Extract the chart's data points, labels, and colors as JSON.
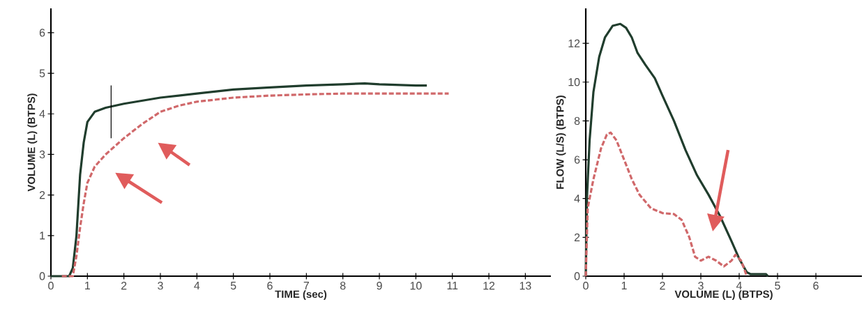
{
  "chart_data": [
    {
      "type": "line",
      "xlabel": "TIME (sec)",
      "ylabel": "VOLUME (L) (BTPS)",
      "xlim": [
        0,
        13.7
      ],
      "ylim": [
        0,
        6.6
      ],
      "xticks": [
        0,
        1,
        2,
        3,
        4,
        5,
        6,
        7,
        8,
        9,
        10,
        11,
        12,
        13
      ],
      "yticks": [
        0,
        1,
        2,
        3,
        4,
        5,
        6
      ],
      "series": [
        {
          "color": "#203d2d",
          "line_style": "solid",
          "x": [
            0,
            0.5,
            0.6,
            0.7,
            0.8,
            0.9,
            1.0,
            1.2,
            1.5,
            2,
            3,
            4,
            5,
            6,
            7,
            8,
            8.6,
            9,
            10,
            10.3
          ],
          "values": [
            0,
            0,
            0.2,
            1,
            2.5,
            3.3,
            3.8,
            4.05,
            4.15,
            4.25,
            4.4,
            4.5,
            4.6,
            4.65,
            4.7,
            4.73,
            4.75,
            4.73,
            4.7,
            4.7
          ]
        },
        {
          "color": "#d0686a",
          "line_style": "dashed",
          "x": [
            0.3,
            0.6,
            0.7,
            0.8,
            0.9,
            1,
            1.2,
            1.5,
            2,
            2.5,
            3,
            3.5,
            4,
            5,
            6,
            7,
            8,
            9,
            10,
            10.9
          ],
          "values": [
            0,
            0,
            0.5,
            1.2,
            1.8,
            2.3,
            2.7,
            3,
            3.4,
            3.75,
            4.05,
            4.2,
            4.3,
            4.4,
            4.45,
            4.48,
            4.5,
            4.5,
            4.5,
            4.5
          ]
        },
        {
          "color": "#000000",
          "line_style": "solid",
          "x": [
            1.65,
            1.65
          ],
          "values": [
            3.4,
            4.7
          ]
        }
      ]
    },
    {
      "type": "line",
      "xlabel": "VOLUME (L) (BTPS)",
      "ylabel": "FLOW (L/S) (BTPS)",
      "xlim": [
        0,
        7.2
      ],
      "ylim": [
        0,
        13.8
      ],
      "xticks": [
        0,
        1,
        2,
        3,
        4,
        5,
        6
      ],
      "yticks": [
        0,
        2,
        4,
        6,
        8,
        10,
        12
      ],
      "series": [
        {
          "color": "#203d2d",
          "line_style": "solid",
          "x": [
            0,
            0.03,
            0.1,
            0.2,
            0.35,
            0.5,
            0.7,
            0.9,
            1.05,
            1.2,
            1.35,
            1.55,
            1.8,
            2.0,
            2.3,
            2.6,
            2.9,
            3.2,
            3.5,
            3.8,
            4.0,
            4.2,
            4.3,
            4.7,
            4.75
          ],
          "values": [
            0,
            4,
            7,
            9.5,
            11.3,
            12.3,
            12.9,
            13,
            12.8,
            12.3,
            11.5,
            10.9,
            10.2,
            9.3,
            8,
            6.5,
            5.2,
            4.2,
            3.1,
            1.8,
            0.9,
            0.2,
            0.1,
            0.1,
            0
          ]
        },
        {
          "color": "#d0686a",
          "line_style": "dashed",
          "x": [
            0,
            0.05,
            0.2,
            0.4,
            0.55,
            0.65,
            0.8,
            1.0,
            1.2,
            1.4,
            1.7,
            2.0,
            2.3,
            2.5,
            2.7,
            2.85,
            3.0,
            3.2,
            3.4,
            3.6,
            3.8,
            3.9,
            4.05,
            4.2
          ],
          "values": [
            0,
            3.5,
            5,
            6.6,
            7.3,
            7.4,
            7.0,
            6.0,
            5.0,
            4.2,
            3.5,
            3.25,
            3.2,
            2.9,
            2.0,
            1.0,
            0.8,
            1.0,
            0.8,
            0.5,
            0.8,
            1.1,
            0.8,
            0
          ]
        }
      ]
    }
  ]
}
